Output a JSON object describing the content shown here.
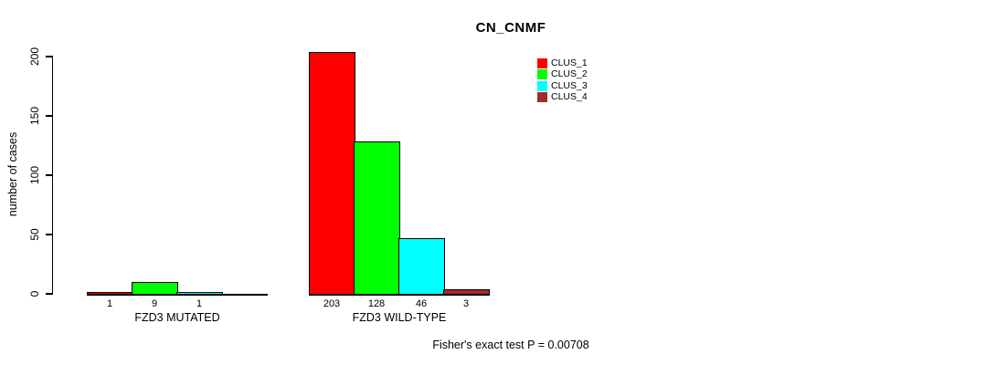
{
  "title": "CN_CNMF",
  "annotation": "Fisher's exact test P = 0.00708",
  "colors": {
    "clus_1": "#ff0000",
    "clus_2": "#00ff00",
    "clus_3": "#00ffff",
    "clus_4": "#a52a2a",
    "axis": "#000000",
    "background": "#ffffff"
  },
  "chart_data": {
    "type": "bar",
    "title": "CN_CNMF",
    "xlabel": "",
    "ylabel": "number of cases",
    "ylim": [
      0,
      200
    ],
    "yticks": [
      0,
      50,
      100,
      150,
      200
    ],
    "grid": false,
    "legend_position": "top-right",
    "categories": [
      "FZD3 MUTATED",
      "FZD3 WILD-TYPE"
    ],
    "series": [
      {
        "name": "CLUS_1",
        "color": "#ff0000",
        "values": [
          1,
          203
        ],
        "labels": [
          "1",
          "203"
        ]
      },
      {
        "name": "CLUS_2",
        "color": "#00ff00",
        "values": [
          9,
          128
        ],
        "labels": [
          "9",
          "128"
        ]
      },
      {
        "name": "CLUS_3",
        "color": "#00ffff",
        "values": [
          1,
          46
        ],
        "labels": [
          "1",
          "46"
        ]
      },
      {
        "name": "CLUS_4",
        "color": "#a52a2a",
        "values": [
          0,
          3
        ],
        "labels": [
          "",
          "3"
        ]
      }
    ],
    "annotation": "Fisher's exact test P = 0.00708"
  },
  "legend": {
    "entries": [
      {
        "label": "CLUS_1",
        "color": "#ff0000"
      },
      {
        "label": "CLUS_2",
        "color": "#00ff00"
      },
      {
        "label": "CLUS_3",
        "color": "#00ffff"
      },
      {
        "label": "CLUS_4",
        "color": "#a52a2a"
      }
    ]
  }
}
